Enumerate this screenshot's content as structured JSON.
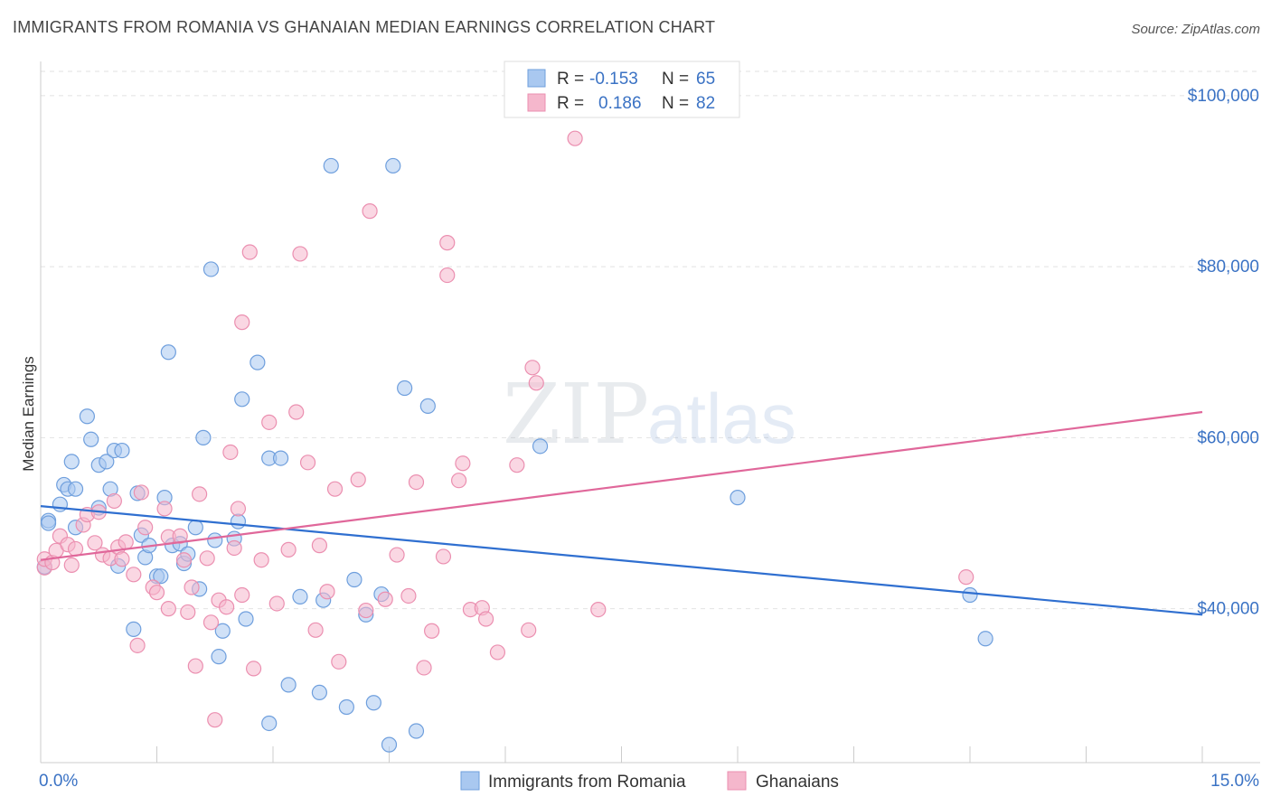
{
  "header": {
    "title": "IMMIGRANTS FROM ROMANIA VS GHANAIAN MEDIAN EARNINGS CORRELATION CHART",
    "source": "Source: ZipAtlas.com"
  },
  "watermark": {
    "part1": "ZIP",
    "part2": "atlas"
  },
  "legend_top": {
    "rows": [
      {
        "r_label": "R =",
        "r_value": "-0.153",
        "n_label": "N =",
        "n_value": "65",
        "color": "#a9c8f0"
      },
      {
        "r_label": "R =",
        "r_value": "0.186",
        "n_label": "N =",
        "n_value": "82",
        "color": "#f5b7cc"
      }
    ]
  },
  "legend_bottom": {
    "items": [
      {
        "label": "Immigrants from Romania",
        "color": "#a9c8f0"
      },
      {
        "label": "Ghanaians",
        "color": "#f5b7cc"
      }
    ]
  },
  "chart_data": {
    "type": "scatter",
    "xlabel": "",
    "ylabel": "Median Earnings",
    "xlim": [
      0,
      15
    ],
    "ylim": [
      22000,
      104000
    ],
    "x_tick_labels": [
      "0.0%",
      "15.0%"
    ],
    "y_ticks": [
      {
        "value": 40000,
        "label": "$40,000"
      },
      {
        "value": 60000,
        "label": "$60,000"
      },
      {
        "value": 80000,
        "label": "$80,000"
      },
      {
        "value": 100000,
        "label": "$100,000"
      }
    ],
    "grid": true,
    "legend_position": "bottom",
    "series": [
      {
        "name": "Immigrants from Romania",
        "color": "#6f9fdd",
        "fill": "#a9c8f0",
        "trend": {
          "x": [
            0,
            15
          ],
          "y": [
            52000,
            39300
          ]
        },
        "points": [
          [
            0.1,
            50300
          ],
          [
            0.1,
            50000
          ],
          [
            0.25,
            52200
          ],
          [
            0.3,
            54500
          ],
          [
            0.35,
            54000
          ],
          [
            0.4,
            57200
          ],
          [
            0.45,
            54000
          ],
          [
            0.45,
            49500
          ],
          [
            0.6,
            62500
          ],
          [
            0.65,
            59800
          ],
          [
            0.75,
            56800
          ],
          [
            0.75,
            51800
          ],
          [
            0.85,
            57200
          ],
          [
            0.9,
            54000
          ],
          [
            0.95,
            58500
          ],
          [
            1.0,
            45000
          ],
          [
            1.05,
            58500
          ],
          [
            1.2,
            37600
          ],
          [
            1.25,
            53500
          ],
          [
            1.3,
            48600
          ],
          [
            1.35,
            46000
          ],
          [
            1.4,
            47400
          ],
          [
            1.5,
            43800
          ],
          [
            1.55,
            43800
          ],
          [
            1.6,
            53000
          ],
          [
            1.65,
            70000
          ],
          [
            1.7,
            47400
          ],
          [
            1.8,
            47600
          ],
          [
            1.85,
            45300
          ],
          [
            1.9,
            46400
          ],
          [
            2.0,
            49500
          ],
          [
            2.05,
            42300
          ],
          [
            2.1,
            60000
          ],
          [
            2.2,
            79700
          ],
          [
            2.25,
            48000
          ],
          [
            2.3,
            34400
          ],
          [
            2.35,
            37400
          ],
          [
            2.5,
            48200
          ],
          [
            2.55,
            50200
          ],
          [
            2.6,
            64500
          ],
          [
            2.65,
            38800
          ],
          [
            2.8,
            68800
          ],
          [
            2.95,
            26600
          ],
          [
            2.95,
            57600
          ],
          [
            3.1,
            57600
          ],
          [
            3.2,
            31100
          ],
          [
            3.35,
            41400
          ],
          [
            3.6,
            30200
          ],
          [
            3.65,
            41000
          ],
          [
            3.75,
            91800
          ],
          [
            3.95,
            28500
          ],
          [
            4.05,
            43400
          ],
          [
            4.2,
            39300
          ],
          [
            4.3,
            29000
          ],
          [
            4.4,
            41700
          ],
          [
            4.5,
            24100
          ],
          [
            4.55,
            91800
          ],
          [
            4.7,
            65800
          ],
          [
            4.85,
            25700
          ],
          [
            5.0,
            63700
          ],
          [
            6.45,
            59000
          ],
          [
            9.0,
            53000
          ],
          [
            12.0,
            41600
          ],
          [
            12.2,
            36500
          ],
          [
            0.05,
            44900
          ]
        ]
      },
      {
        "name": "Ghanaians",
        "color": "#eb8fb0",
        "fill": "#f5b7cc",
        "trend": {
          "x": [
            0,
            15
          ],
          "y": [
            45700,
            63000
          ]
        },
        "points": [
          [
            0.05,
            44800
          ],
          [
            0.05,
            45800
          ],
          [
            0.15,
            45400
          ],
          [
            0.2,
            46800
          ],
          [
            0.25,
            48500
          ],
          [
            0.35,
            47500
          ],
          [
            0.4,
            45100
          ],
          [
            0.45,
            47000
          ],
          [
            0.55,
            49800
          ],
          [
            0.6,
            51000
          ],
          [
            0.7,
            47700
          ],
          [
            0.75,
            51300
          ],
          [
            0.8,
            46300
          ],
          [
            0.9,
            45900
          ],
          [
            0.95,
            52600
          ],
          [
            1.0,
            47200
          ],
          [
            1.05,
            45800
          ],
          [
            1.1,
            47800
          ],
          [
            1.2,
            44000
          ],
          [
            1.25,
            35700
          ],
          [
            1.3,
            53600
          ],
          [
            1.35,
            49500
          ],
          [
            1.45,
            42500
          ],
          [
            1.5,
            41900
          ],
          [
            1.6,
            51700
          ],
          [
            1.65,
            48400
          ],
          [
            1.65,
            40000
          ],
          [
            1.8,
            48500
          ],
          [
            1.85,
            45700
          ],
          [
            1.9,
            39600
          ],
          [
            1.95,
            42500
          ],
          [
            2.0,
            33300
          ],
          [
            2.05,
            53400
          ],
          [
            2.15,
            45900
          ],
          [
            2.2,
            38400
          ],
          [
            2.25,
            27000
          ],
          [
            2.3,
            41000
          ],
          [
            2.4,
            40200
          ],
          [
            2.45,
            58300
          ],
          [
            2.5,
            47100
          ],
          [
            2.55,
            51700
          ],
          [
            2.6,
            41600
          ],
          [
            2.6,
            73500
          ],
          [
            2.7,
            81700
          ],
          [
            2.75,
            33000
          ],
          [
            2.85,
            45700
          ],
          [
            2.95,
            61800
          ],
          [
            3.05,
            40600
          ],
          [
            3.2,
            46900
          ],
          [
            3.3,
            63000
          ],
          [
            3.35,
            81500
          ],
          [
            3.45,
            57100
          ],
          [
            3.55,
            37500
          ],
          [
            3.6,
            47400
          ],
          [
            3.7,
            42000
          ],
          [
            3.8,
            54000
          ],
          [
            3.85,
            33800
          ],
          [
            4.1,
            55100
          ],
          [
            4.2,
            39800
          ],
          [
            4.25,
            86500
          ],
          [
            4.45,
            41100
          ],
          [
            4.6,
            46300
          ],
          [
            4.75,
            41500
          ],
          [
            4.85,
            54800
          ],
          [
            4.95,
            33100
          ],
          [
            5.05,
            37400
          ],
          [
            5.2,
            46100
          ],
          [
            5.25,
            82800
          ],
          [
            5.25,
            79000
          ],
          [
            5.4,
            55000
          ],
          [
            5.45,
            57000
          ],
          [
            5.55,
            39900
          ],
          [
            5.7,
            40100
          ],
          [
            5.75,
            38800
          ],
          [
            5.9,
            34900
          ],
          [
            6.15,
            56800
          ],
          [
            6.3,
            37500
          ],
          [
            6.35,
            68200
          ],
          [
            6.4,
            66400
          ],
          [
            6.9,
            95000
          ],
          [
            7.2,
            39900
          ],
          [
            11.95,
            43700
          ]
        ]
      }
    ]
  }
}
